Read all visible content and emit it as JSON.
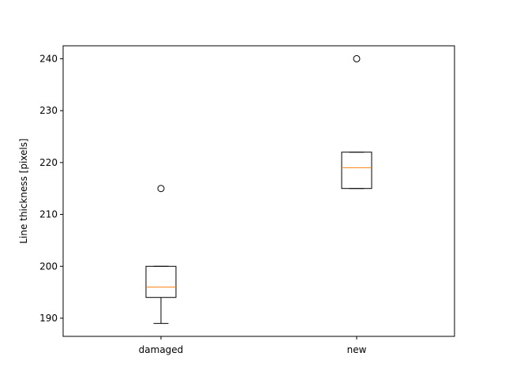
{
  "chart_data": {
    "type": "box",
    "ylabel": "Line thickness [pixels]",
    "xlabel": "",
    "title": "",
    "ylim": [
      186.5,
      242.5
    ],
    "yticks": [
      190,
      200,
      210,
      220,
      230,
      240
    ],
    "categories": [
      "damaged",
      "new"
    ],
    "boxes": [
      {
        "category": "damaged",
        "whisker_low": 189,
        "q1": 194,
        "median": 196,
        "q3": 200,
        "whisker_high": 200,
        "outliers": [
          215
        ]
      },
      {
        "category": "new",
        "whisker_low": 215,
        "q1": 215,
        "median": 219,
        "q3": 222,
        "whisker_high": 222,
        "outliers": [
          240
        ]
      }
    ],
    "grid": false,
    "colors": {
      "box": "#000000",
      "median": "#ff7f0e",
      "outlier": "#000000"
    }
  }
}
